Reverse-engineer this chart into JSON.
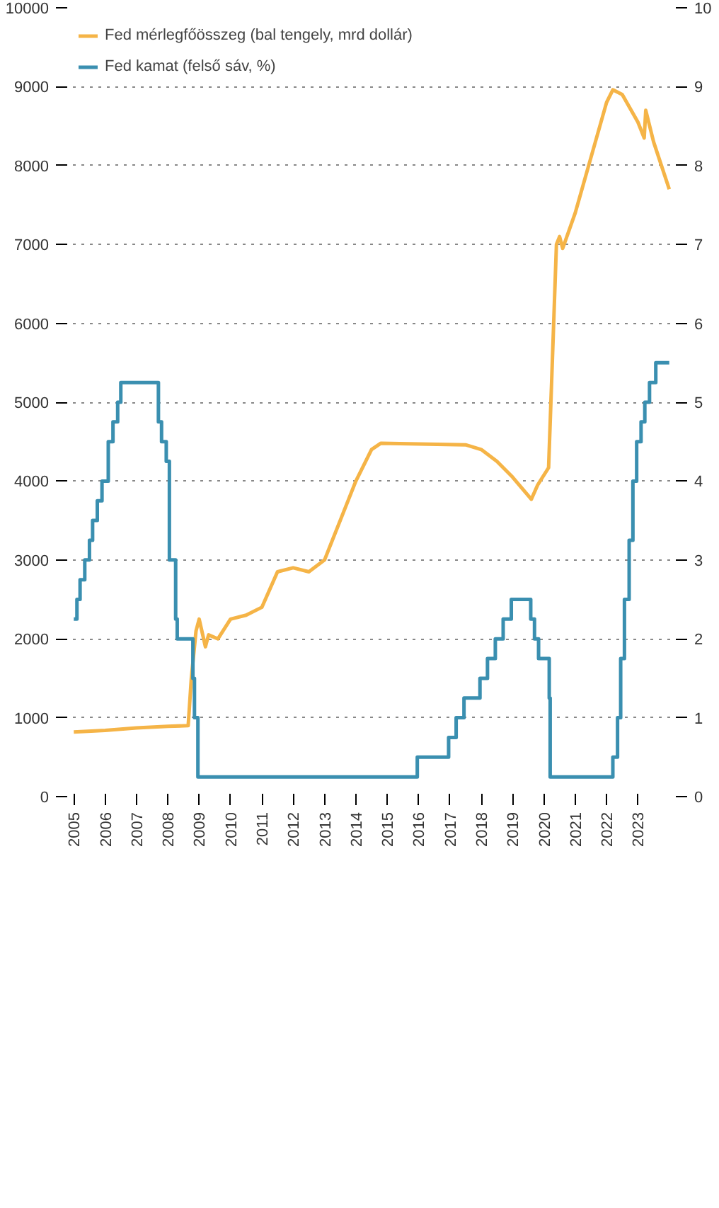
{
  "chart_data": {
    "type": "line",
    "xlim": [
      2004.7,
      2024.3
    ],
    "xticks": [
      2005,
      2006,
      2007,
      2008,
      2009,
      2010,
      2011,
      2012,
      2013,
      2014,
      2015,
      2016,
      2017,
      2018,
      2019,
      2020,
      2021,
      2022,
      2023
    ],
    "ylim": [
      0,
      10000
    ],
    "yticks": [
      0,
      1000,
      2000,
      3000,
      4000,
      5000,
      6000,
      7000,
      8000,
      9000,
      10000
    ],
    "y2lim": [
      0,
      10
    ],
    "y2ticks": [
      0,
      1,
      2,
      3,
      4,
      5,
      6,
      7,
      8,
      9,
      10
    ],
    "grid": "y",
    "legend": "top left",
    "line_style": "solid",
    "marker": "none",
    "series": [
      {
        "name": "Fed mérlegfőösszeg (bal tengely, mrd dollár)",
        "color": "#f5b447",
        "x": [
          2005,
          2006,
          2007,
          2008,
          2008.65,
          2008.75,
          2008.9,
          2009.0,
          2009.2,
          2009.3,
          2009.6,
          2010.0,
          2010.5,
          2011.0,
          2011.5,
          2012.0,
          2012.5,
          2013.0,
          2013.5,
          2014.0,
          2014.5,
          2014.8,
          2016.0,
          2017.5,
          2018.0,
          2018.5,
          2019.0,
          2019.6,
          2019.8,
          2020.15,
          2020.25,
          2020.4,
          2020.5,
          2020.6,
          2021.0,
          2021.5,
          2022.0,
          2022.2,
          2022.5,
          2023.0,
          2023.2,
          2023.25,
          2023.5,
          2024.0
        ],
        "values": [
          820,
          840,
          870,
          890,
          900,
          1500,
          2100,
          2250,
          1900,
          2050,
          2000,
          2250,
          2300,
          2400,
          2850,
          2900,
          2850,
          3000,
          3500,
          4000,
          4400,
          4480,
          4470,
          4460,
          4400,
          4250,
          4050,
          3770,
          3950,
          4170,
          5300,
          7000,
          7100,
          6950,
          7400,
          8100,
          8800,
          8960,
          8900,
          8550,
          8350,
          8700,
          8300,
          7700
        ]
      },
      {
        "name": "Fed kamat (felső sáv, %)",
        "color": "#3a8fb0",
        "type": "step",
        "axis": "y2",
        "x": [
          2005.0,
          2005.1,
          2005.2,
          2005.35,
          2005.5,
          2005.6,
          2005.75,
          2005.9,
          2006.1,
          2006.25,
          2006.4,
          2006.5,
          2007.7,
          2007.8,
          2007.95,
          2008.05,
          2008.25,
          2008.3,
          2008.8,
          2008.85,
          2008.96,
          2015.96,
          2016.96,
          2017.2,
          2017.45,
          2017.96,
          2018.2,
          2018.45,
          2018.7,
          2018.96,
          2019.58,
          2019.7,
          2019.83,
          2020.17,
          2020.2,
          2022.2,
          2022.35,
          2022.45,
          2022.57,
          2022.72,
          2022.84,
          2022.96,
          2023.1,
          2023.22,
          2023.37,
          2023.57,
          2024.0
        ],
        "values": [
          2.25,
          2.5,
          2.75,
          3.0,
          3.25,
          3.5,
          3.75,
          4.0,
          4.5,
          4.75,
          5.0,
          5.25,
          4.75,
          4.5,
          4.25,
          3.0,
          2.25,
          2.0,
          1.5,
          1.0,
          0.25,
          0.5,
          0.75,
          1.0,
          1.25,
          1.5,
          1.75,
          2.0,
          2.25,
          2.5,
          2.25,
          2.0,
          1.75,
          1.25,
          0.25,
          0.5,
          1.0,
          1.75,
          2.5,
          3.25,
          4.0,
          4.5,
          4.75,
          5.0,
          5.25,
          5.5,
          5.5
        ]
      }
    ]
  }
}
